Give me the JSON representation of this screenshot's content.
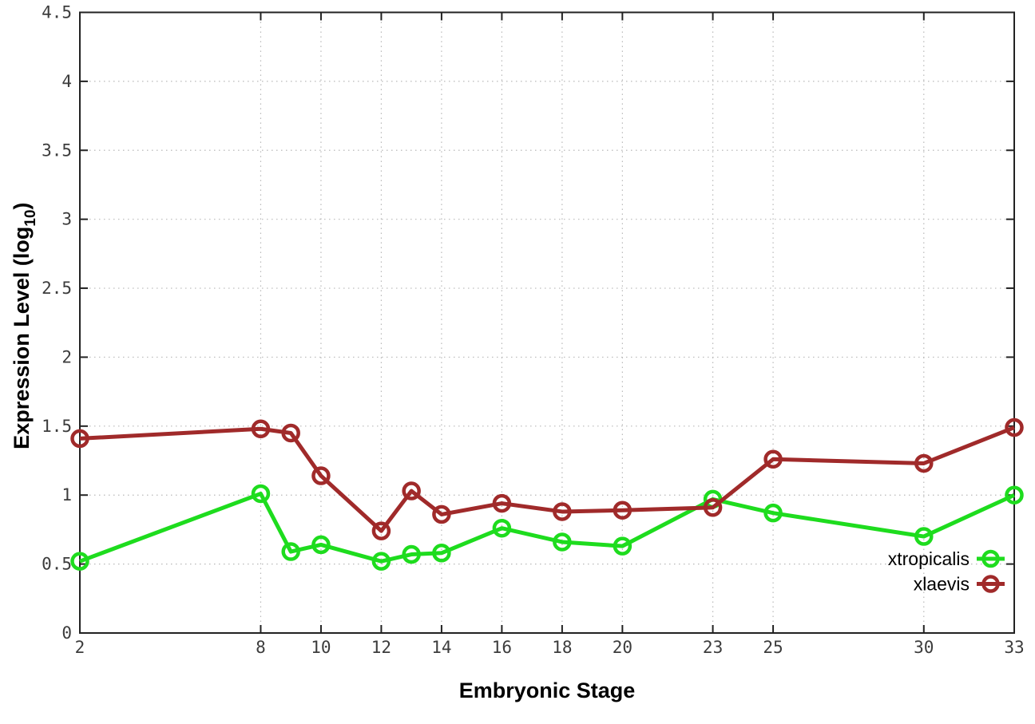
{
  "figure": {
    "background": "#ffffff",
    "axis_color": "#222222",
    "grid_color": "#b8b8b8",
    "tick_label_color": "#3c3c3c"
  },
  "chart_data": {
    "type": "line",
    "title": "",
    "xlabel": "Embryonic Stage",
    "ylabel": "Expression Level (log10)",
    "ylabel_parts": {
      "pre": "Expression Level (log",
      "sub": "10",
      "post": ")"
    },
    "x": [
      2,
      8,
      9,
      10,
      12,
      13,
      14,
      16,
      18,
      20,
      23,
      25,
      30,
      33
    ],
    "series": [
      {
        "name": "xtropicalis",
        "color": "#1edc1e",
        "values": [
          0.52,
          1.01,
          0.59,
          0.64,
          0.52,
          0.57,
          0.58,
          0.76,
          0.66,
          0.63,
          0.97,
          0.87,
          0.7,
          1.0
        ]
      },
      {
        "name": "xlaevis",
        "color": "#a02a2a",
        "values": [
          1.41,
          1.48,
          1.45,
          1.14,
          0.74,
          1.03,
          0.86,
          0.94,
          0.88,
          0.89,
          0.91,
          1.26,
          1.23,
          1.49
        ]
      }
    ],
    "xlim": [
      2,
      33
    ],
    "ylim": [
      0,
      4.5
    ],
    "xticks": [
      2,
      8,
      10,
      12,
      14,
      16,
      18,
      20,
      23,
      25,
      30,
      33
    ],
    "yticks": [
      0,
      0.5,
      1,
      1.5,
      2,
      2.5,
      3,
      3.5,
      4,
      4.5
    ],
    "ytick_labels": [
      "0",
      "0.5",
      "1",
      "1.5",
      "2",
      "2.5",
      "3",
      "3.5",
      "4",
      "4.5"
    ],
    "grid": true,
    "legend_position": "bottom-right",
    "legend_entries": [
      "xtropicalis",
      "xlaevis"
    ],
    "marker": "open-circle"
  }
}
